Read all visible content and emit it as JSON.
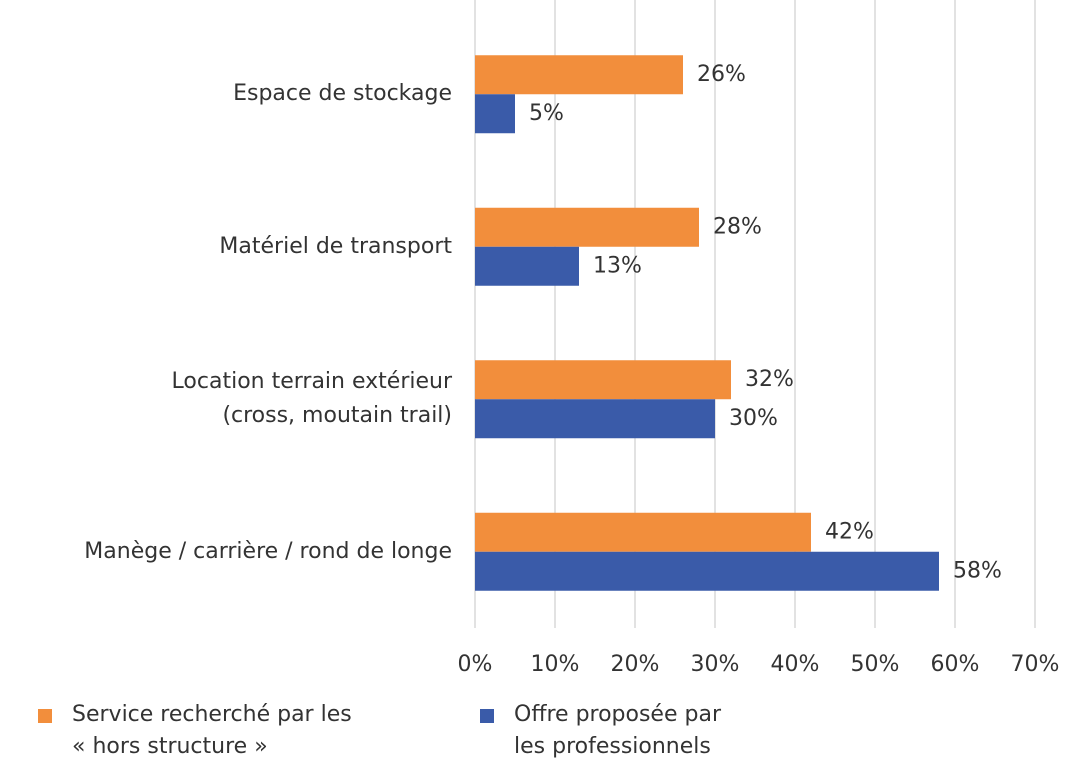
{
  "chart_data": {
    "type": "bar",
    "orientation": "horizontal",
    "categories": [
      "Espace de stockage",
      "Matériel de transport",
      "Location terrain extérieur\n(cross, moutain trail)",
      "Manège / carrière / rond de longe"
    ],
    "series": [
      {
        "name": "Service recherché par les\n« hors structure »",
        "color": "#f28e3c",
        "values": [
          26,
          28,
          32,
          42
        ],
        "value_labels": [
          "26%",
          "28%",
          "32%",
          "42%"
        ]
      },
      {
        "name": "Offre proposée par\nles professionnels",
        "color": "#3a5ba9",
        "values": [
          5,
          13,
          30,
          58
        ],
        "value_labels": [
          "5%",
          "13%",
          "30%",
          "58%"
        ]
      }
    ],
    "xlim": [
      0,
      70
    ],
    "xticks": [
      {
        "value": 0,
        "label": "0%"
      },
      {
        "value": 10,
        "label": "10%"
      },
      {
        "value": 20,
        "label": "20%"
      },
      {
        "value": 30,
        "label": "30%"
      },
      {
        "value": 40,
        "label": "40%"
      },
      {
        "value": 50,
        "label": "50%"
      },
      {
        "value": 60,
        "label": "60%"
      },
      {
        "value": 70,
        "label": "70%"
      }
    ],
    "grid": true,
    "legend": "bottom"
  }
}
